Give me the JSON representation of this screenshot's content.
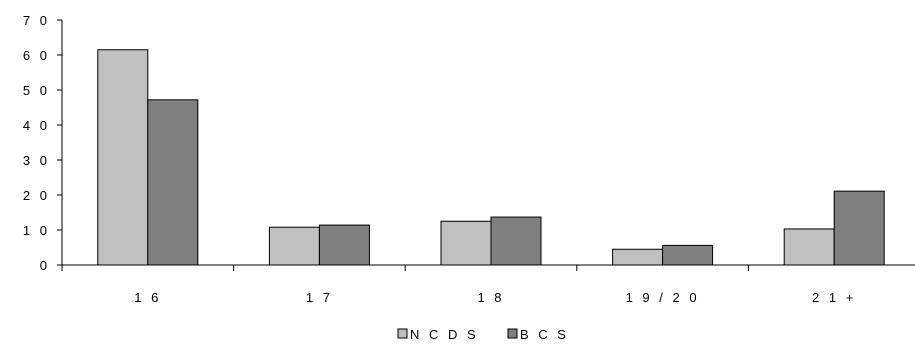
{
  "chart_data": {
    "type": "bar",
    "title": "",
    "xlabel": "",
    "ylabel": "",
    "categories": [
      "16",
      "17",
      "18",
      "19/20",
      "21+"
    ],
    "category_labels": [
      "1 6",
      "1 7",
      "1 8",
      "1 9 / 2 0",
      "2 1 +"
    ],
    "series": [
      {
        "name": "NCDS",
        "label": "N C D S",
        "color": "#c0c0c0",
        "values": [
          61.5,
          10.8,
          12.5,
          4.5,
          10.3
        ]
      },
      {
        "name": "BCS",
        "label": "B C S",
        "color": "#808080",
        "values": [
          47.2,
          11.4,
          13.7,
          5.6,
          21.1
        ]
      }
    ],
    "ylim": [
      0,
      70
    ],
    "yticks": [
      0,
      10,
      20,
      30,
      40,
      50,
      60,
      70
    ],
    "ytick_labels": [
      "0",
      "1 0",
      "2 0",
      "3 0",
      "4 0",
      "5 0",
      "6 0",
      "7 0"
    ],
    "grid": false,
    "legend_position": "bottom-center"
  }
}
